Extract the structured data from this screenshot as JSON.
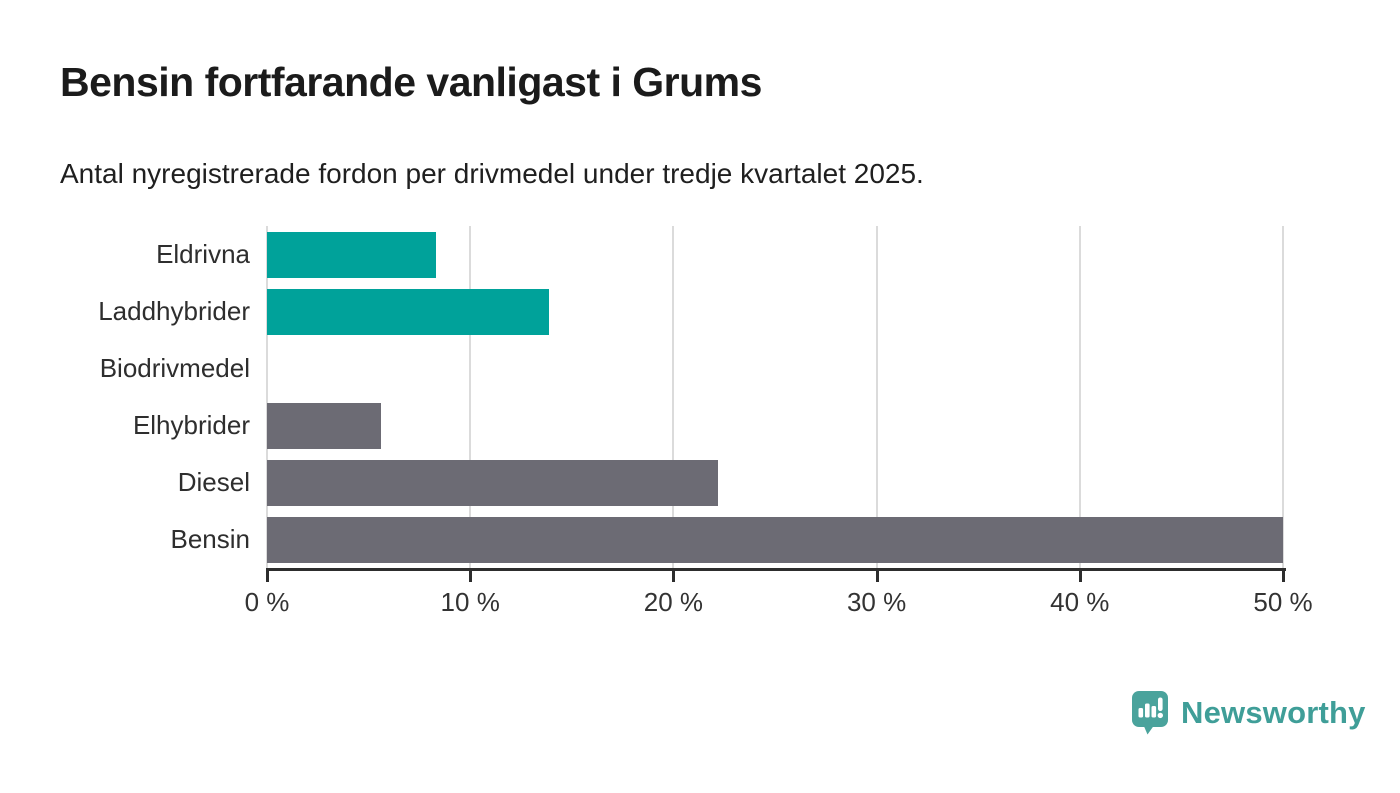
{
  "header": {
    "title": "Bensin fortfarande vanligast i Grums",
    "subtitle": "Antal nyregistrerade fordon per drivmedel under tredje kvartalet 2025."
  },
  "chart_data": {
    "type": "bar",
    "orientation": "horizontal",
    "title": "Bensin fortfarande vanligast i Grums",
    "subtitle": "Antal nyregistrerade fordon per drivmedel under tredje kvartalet 2025.",
    "categories": [
      "Eldrivna",
      "Laddhybrider",
      "Biodrivmedel",
      "Elhybrider",
      "Diesel",
      "Bensin"
    ],
    "values": [
      8.3,
      13.9,
      0,
      5.6,
      22.2,
      50
    ],
    "unit": "%",
    "bar_colors": [
      "#00a29a",
      "#00a29a",
      "#6c6b74",
      "#6c6b74",
      "#6c6b74",
      "#6c6b74"
    ],
    "xlabel": "",
    "ylabel": "",
    "xlim": [
      0,
      50
    ],
    "x_ticks": [
      0,
      10,
      20,
      30,
      40,
      50
    ],
    "x_tick_labels": [
      "0 %",
      "10 %",
      "20 %",
      "30 %",
      "40 %",
      "50 %"
    ],
    "grid": "vertical",
    "legend": "none"
  },
  "style": {
    "accent_teal": "#00a29a",
    "neutral_gray": "#6c6b74",
    "grid_color": "#dbdbdb",
    "axis_color": "#2d2d2d"
  },
  "branding": {
    "logo_text": "Newsworthy",
    "logo_color": "#3f9e98",
    "icon_color": "#4aa39c",
    "icon": "newsworthy-speech-bubble-bar-chart-icon"
  }
}
